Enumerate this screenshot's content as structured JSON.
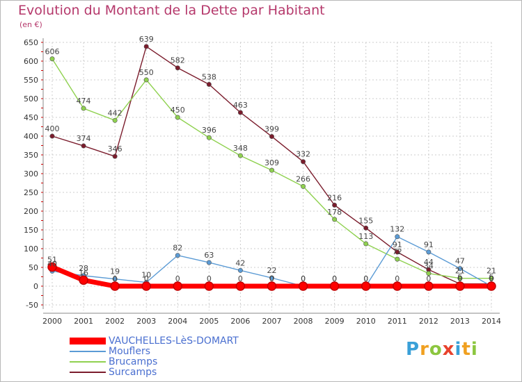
{
  "title": "Evolution du Montant de la Dette par Habitant",
  "subtitle": "(en €)",
  "logo_text": "Proxiti",
  "chart_data": {
    "type": "line",
    "title": "Evolution du Montant de la Dette par Habitant",
    "subtitle": "(en €)",
    "x": [
      "2000",
      "2001",
      "2002",
      "2003",
      "2004",
      "2005",
      "2006",
      "2007",
      "2008",
      "2009",
      "2010",
      "2011",
      "2012",
      "2013",
      "2014"
    ],
    "y_ticks": [
      "650",
      "600",
      "550",
      "500",
      "450",
      "400",
      "350",
      "300",
      "250",
      "200",
      "150",
      "100",
      "50",
      "0",
      "-50"
    ],
    "ylim": [
      -50,
      650
    ],
    "grid": true,
    "legend_position": "bottom-left",
    "series": [
      {
        "name": "VAUCHELLES-LèS-DOMART",
        "color": "#ff0000",
        "values": [
          51,
          16,
          0,
          0,
          0,
          0,
          0,
          0,
          0,
          0,
          0,
          0,
          0,
          0,
          0
        ]
      },
      {
        "name": "Mouflers",
        "color": "#5b9bd5",
        "values": [
          40,
          28,
          19,
          10,
          82,
          63,
          42,
          22,
          0,
          0,
          0,
          132,
          91,
          47,
          0
        ]
      },
      {
        "name": "Brucamps",
        "color": "#8fd14f",
        "values": [
          606,
          474,
          442,
          550,
          450,
          396,
          348,
          309,
          266,
          178,
          113,
          72,
          34,
          21,
          21
        ]
      },
      {
        "name": "Surcamps",
        "color": "#7b1c2c",
        "values": [
          400,
          374,
          346,
          639,
          582,
          538,
          463,
          399,
          332,
          216,
          155,
          91,
          44,
          6,
          6
        ]
      }
    ]
  }
}
